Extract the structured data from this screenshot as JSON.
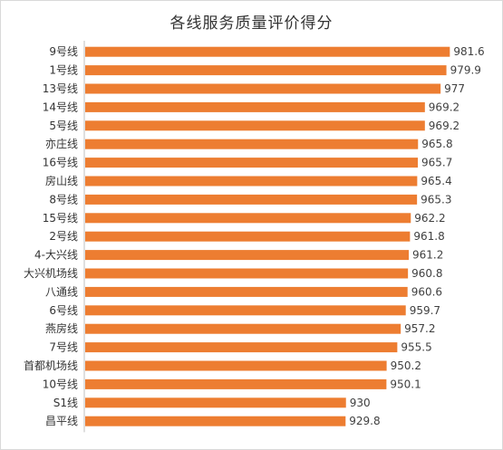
{
  "chart_data": {
    "type": "bar",
    "orientation": "horizontal",
    "title": "各线服务质量评价得分",
    "categories": [
      "9号线",
      "1号线",
      "13号线",
      "14号线",
      "5号线",
      "亦庄线",
      "16号线",
      "房山线",
      "8号线",
      "15号线",
      "2号线",
      "4-大兴线",
      "大兴机场线",
      "八通线",
      "6号线",
      "燕房线",
      "7号线",
      "首都机场线",
      "10号线",
      "S1线",
      "昌平线"
    ],
    "values": [
      981.6,
      979.9,
      977,
      969.2,
      969.2,
      965.8,
      965.7,
      965.4,
      965.3,
      962.2,
      961.8,
      961.2,
      960.8,
      960.6,
      959.7,
      957.2,
      955.5,
      950.2,
      950.1,
      930,
      929.8
    ],
    "value_labels": [
      "981.6",
      "979.9",
      "977",
      "969.2",
      "969.2",
      "965.8",
      "965.7",
      "965.4",
      "965.3",
      "962.2",
      "961.8",
      "961.2",
      "960.8",
      "960.6",
      "959.7",
      "957.2",
      "955.5",
      "950.2",
      "950.1",
      "930",
      "929.8"
    ],
    "xlim": [
      800,
      990
    ],
    "grid": false,
    "legend": "none",
    "bar_color": "#ed7d31",
    "axis_color": "#bfbfbf"
  }
}
